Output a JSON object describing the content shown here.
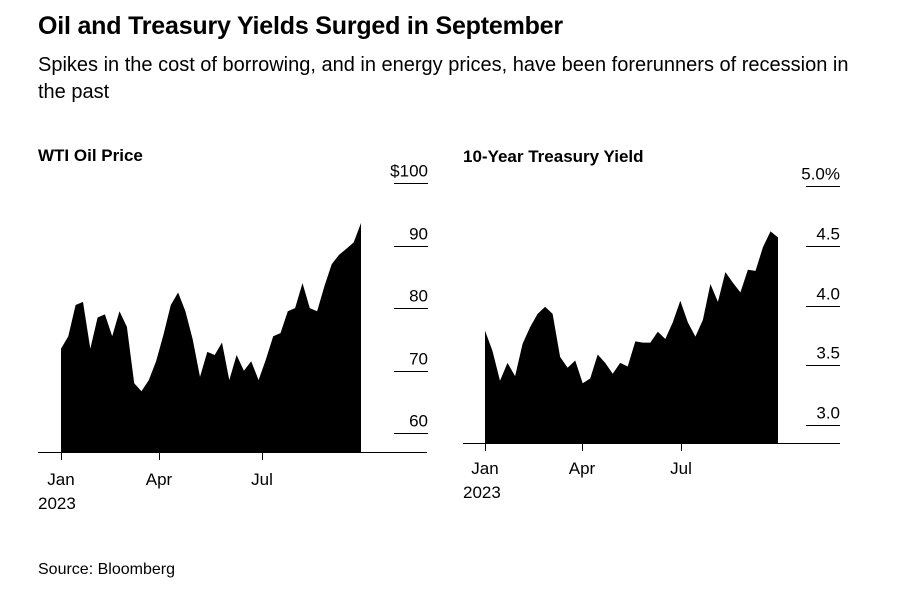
{
  "title": "Oil and Treasury Yields Surged in September",
  "subtitle": "Spikes in the cost of borrowing, and in energy prices, have been forerunners of recession in the past",
  "source": "Source: Bloomberg",
  "chart_data": [
    {
      "type": "area",
      "title": "WTI Oil Price",
      "x_ticks": [
        "Jan",
        "Apr",
        "Jul"
      ],
      "x_year_label": "2023",
      "y_tick_labels": [
        "$100",
        "90",
        "80",
        "70",
        "60"
      ],
      "ylim": [
        57,
        100
      ],
      "x": [
        "Jan 3",
        "Jan 10",
        "Jan 20",
        "Jan 27",
        "Feb 3",
        "Feb 10",
        "Feb 17",
        "Feb 24",
        "Mar 3",
        "Mar 10",
        "Mar 15",
        "Mar 17",
        "Mar 20",
        "Mar 24",
        "Mar 31",
        "Apr 5",
        "Apr 12",
        "Apr 19",
        "Apr 26",
        "May 3",
        "May 10",
        "May 17",
        "May 24",
        "May 31",
        "Jun 7",
        "Jun 14",
        "Jun 21",
        "Jun 28",
        "Jul 5",
        "Jul 12",
        "Jul 19",
        "Jul 26",
        "Aug 2",
        "Aug 9",
        "Aug 16",
        "Aug 23",
        "Aug 30",
        "Sep 6",
        "Sep 13",
        "Sep 20",
        "Sep 26",
        "Sep 28"
      ],
      "values": [
        73.5,
        75.5,
        80.5,
        81.0,
        73.5,
        78.5,
        79.0,
        75.5,
        79.5,
        77.0,
        68.0,
        66.7,
        68.5,
        71.5,
        75.7,
        80.5,
        82.5,
        79.5,
        75.0,
        69.0,
        73.0,
        72.5,
        74.5,
        68.5,
        72.5,
        70.0,
        71.5,
        68.5,
        71.8,
        75.5,
        76.0,
        79.5,
        80.0,
        84.0,
        80.0,
        79.5,
        83.5,
        87.0,
        88.5,
        89.5,
        90.5,
        93.6
      ]
    },
    {
      "type": "area",
      "title": "10-Year Treasury Yield",
      "x_ticks": [
        "Jan",
        "Apr",
        "Jul"
      ],
      "x_year_label": "2023",
      "y_tick_labels": [
        "5.0%",
        "4.5",
        "4.0",
        "3.5",
        "3.0"
      ],
      "ylim": [
        2.85,
        5.0
      ],
      "x": [
        "Jan 3",
        "Jan 10",
        "Jan 18",
        "Jan 25",
        "Feb 1",
        "Feb 8",
        "Feb 15",
        "Feb 22",
        "Mar 1",
        "Mar 8",
        "Mar 13",
        "Mar 20",
        "Mar 27",
        "Apr 3",
        "Apr 10",
        "Apr 17",
        "Apr 24",
        "May 1",
        "May 8",
        "May 15",
        "May 22",
        "May 29",
        "Jun 5",
        "Jun 12",
        "Jun 20",
        "Jun 27",
        "Jul 5",
        "Jul 12",
        "Jul 19",
        "Jul 26",
        "Aug 2",
        "Aug 9",
        "Aug 16",
        "Aug 23",
        "Aug 30",
        "Sep 6",
        "Sep 13",
        "Sep 20",
        "Sep 27",
        "Sep 29"
      ],
      "values": [
        3.79,
        3.62,
        3.37,
        3.52,
        3.41,
        3.68,
        3.82,
        3.93,
        3.99,
        3.93,
        3.57,
        3.48,
        3.54,
        3.35,
        3.39,
        3.59,
        3.52,
        3.43,
        3.52,
        3.49,
        3.7,
        3.69,
        3.69,
        3.78,
        3.72,
        3.86,
        4.04,
        3.86,
        3.74,
        3.88,
        4.18,
        4.03,
        4.28,
        4.19,
        4.11,
        4.3,
        4.29,
        4.49,
        4.62,
        4.57
      ]
    }
  ]
}
